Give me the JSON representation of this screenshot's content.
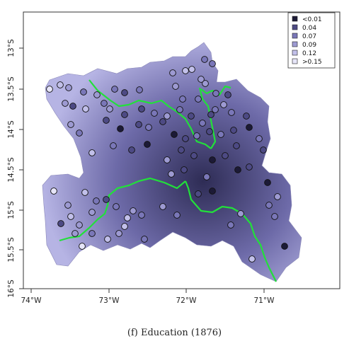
{
  "caption": "(f) Education (1876)",
  "map": {
    "x_ticks": [
      "74°W",
      "73°W",
      "72°W",
      "71°W"
    ],
    "y_ticks": [
      "13°S",
      "13.5°S",
      "14°S",
      "14.5°S",
      "15°S",
      "15.5°S",
      "16°S"
    ],
    "boundary_color": "#22e03a",
    "surface_colors": {
      "dark": "#2e2c55",
      "mid": "#6d6aa8",
      "light": "#b6b4e4"
    }
  },
  "legend": {
    "items": [
      {
        "label": "<0.01",
        "color": "#1c1a36"
      },
      {
        "label": "0.04",
        "color": "#4d4a84"
      },
      {
        "label": "0.07",
        "color": "#7a77b8"
      },
      {
        "label": "0.09",
        "color": "#9d9ad2"
      },
      {
        "label": "0.12",
        "color": "#c2c0ea"
      },
      {
        "label": ">0.15",
        "color": "#e6e5f8"
      }
    ]
  }
}
